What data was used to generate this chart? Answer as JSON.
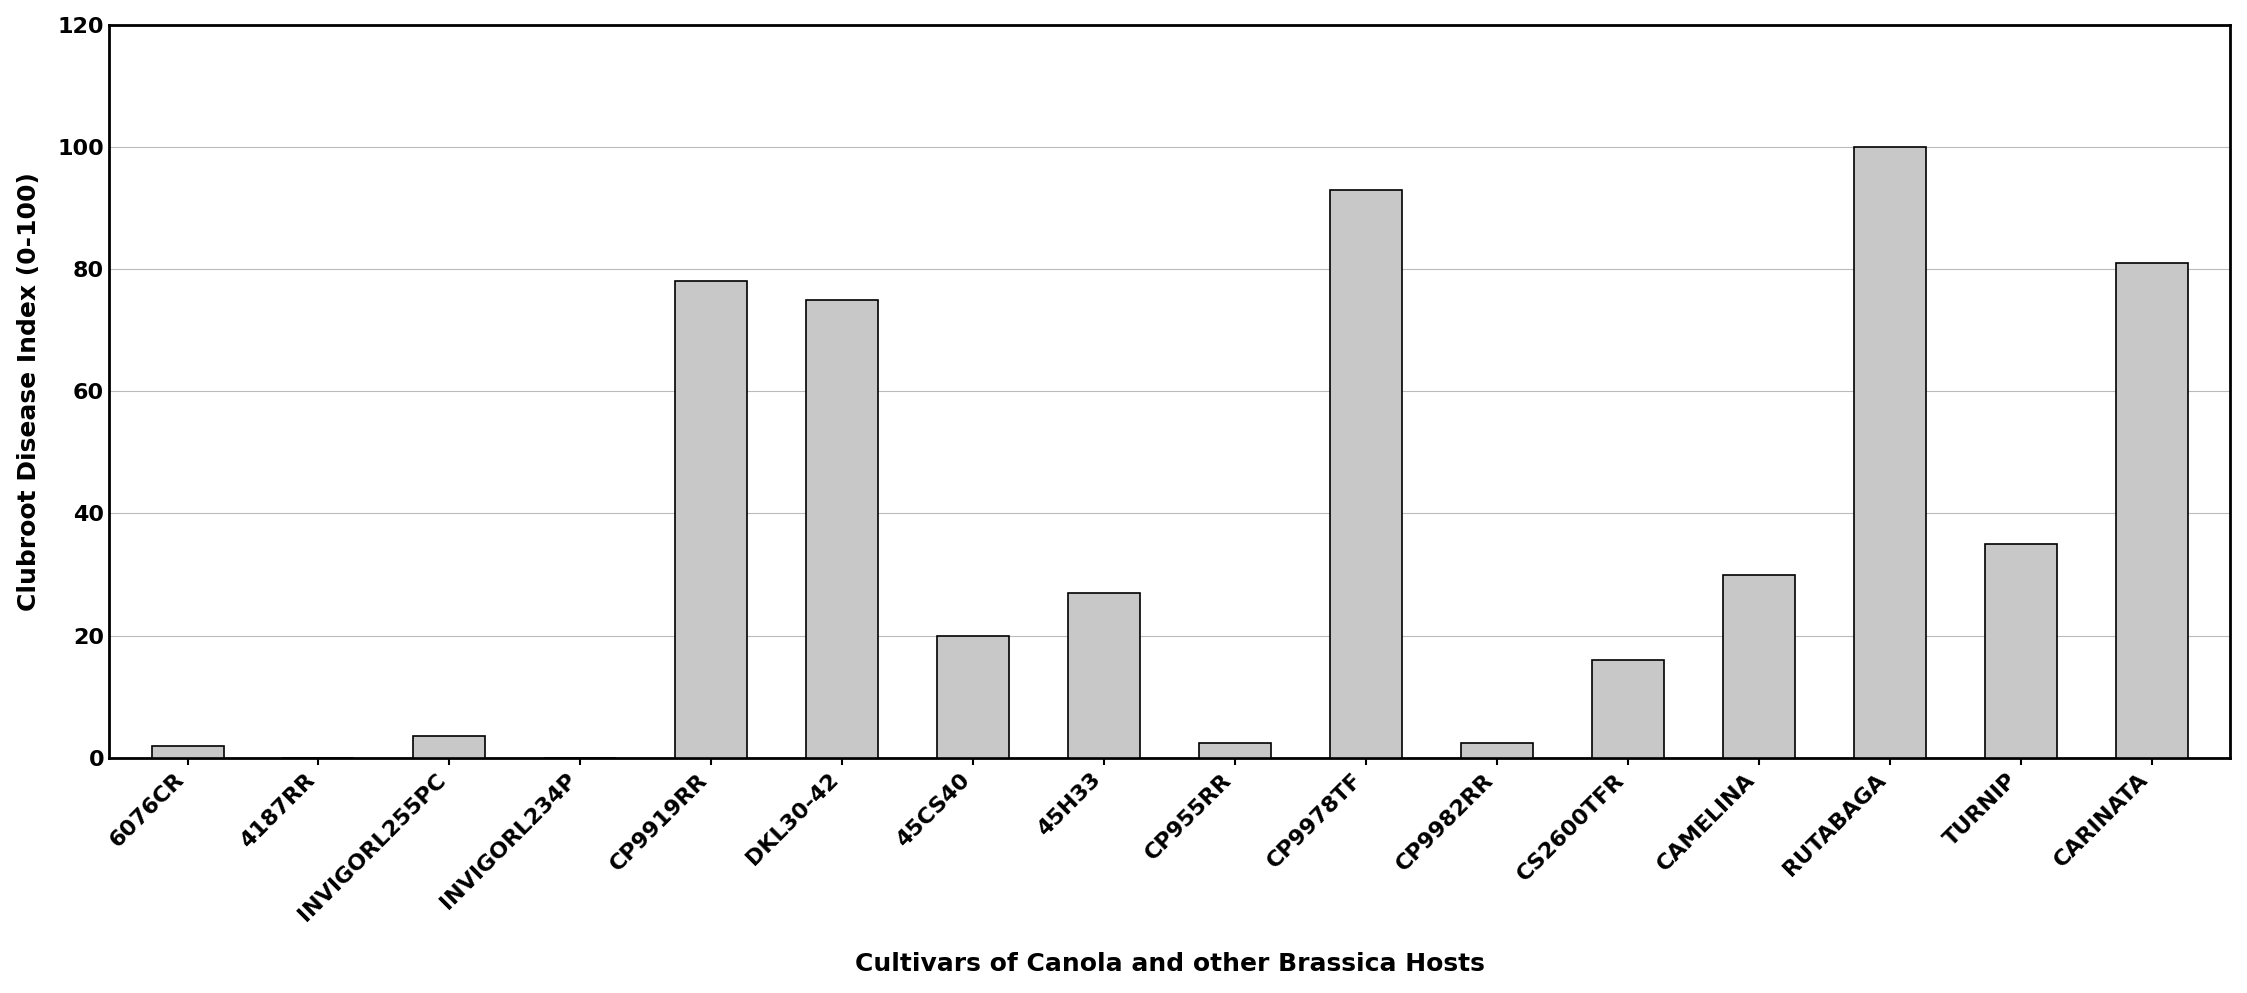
{
  "categories": [
    "6076CR",
    "4187RR",
    "INVIGORL255PC",
    "INVIGORL234P",
    "CP9919RR",
    "DKL30-42",
    "45CS40",
    "45H33",
    "CP955RR",
    "CP9978TF",
    "CP9982RR",
    "CS2600TFR",
    "CAMELINA",
    "RUTABAGA",
    "TURNIP",
    "CARINATA"
  ],
  "values": [
    2,
    0,
    3.5,
    0,
    78,
    75,
    20,
    27,
    2.5,
    93,
    2.5,
    16,
    30,
    100,
    35,
    81
  ],
  "bar_color": "#c8c8c8",
  "bar_edgecolor": "#000000",
  "ylabel": "Clubroot Disease Index (0-100)",
  "xlabel": "Cultivars of Canola and other Brassica Hosts",
  "ylim": [
    0,
    120
  ],
  "yticks": [
    0,
    20,
    40,
    60,
    80,
    100,
    120
  ],
  "title": "",
  "background_color": "#ffffff",
  "grid_color": "#bbbbbb",
  "bar_width": 0.55,
  "ylabel_fontsize": 18,
  "xlabel_fontsize": 18,
  "tick_fontsize": 16,
  "spine_linewidth": 2.0
}
